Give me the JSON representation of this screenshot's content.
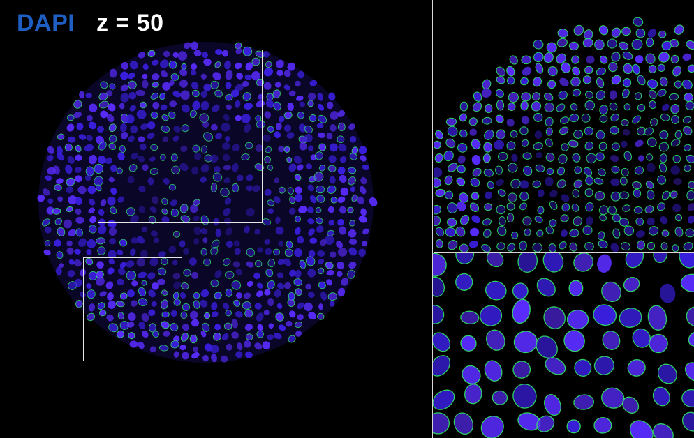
{
  "labels": {
    "channel": "DAPI",
    "z": "z = 50"
  },
  "colors": {
    "channel_label": "#1f5fc4",
    "z_label": "#ffffff",
    "nucleus_fill": "#3a1fe0",
    "nucleus_bright": "#5a2cff",
    "outline": "#33ee66",
    "background": "#000000",
    "roi_border": "#e6e6e6"
  }
}
